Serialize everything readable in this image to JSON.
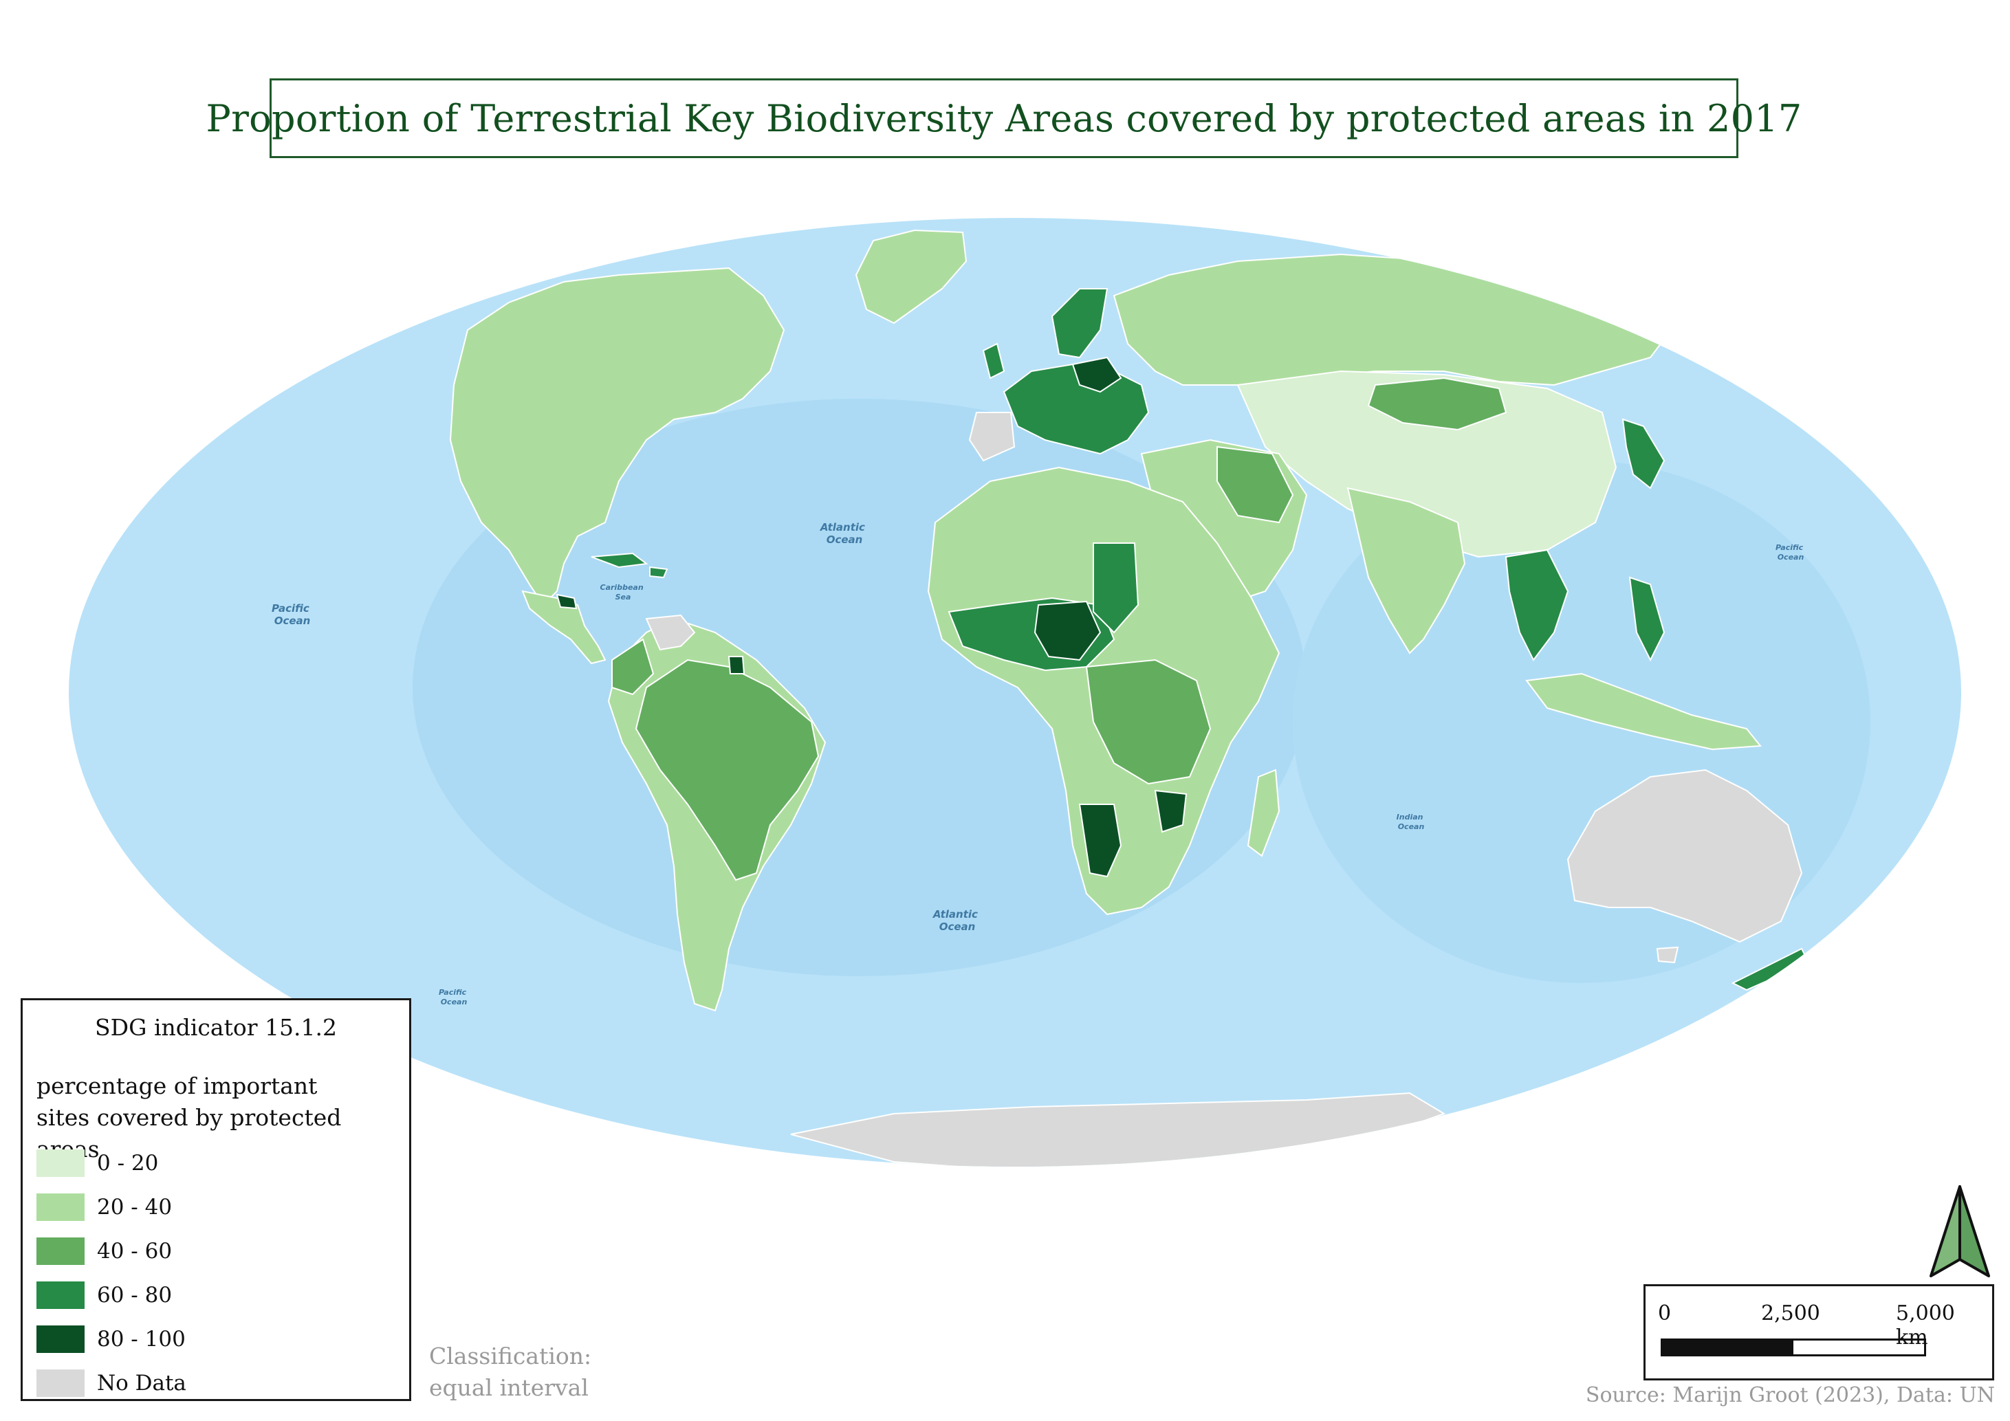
{
  "title": "Proportion of Terrestrial Key Biodiversity Areas covered by protected areas in 2017",
  "ocean_labels": [
    {
      "id": "atlantic-north",
      "lines": [
        "Atlantic",
        "Ocean"
      ]
    },
    {
      "id": "pacific-east",
      "lines": [
        "Pacific",
        "Ocean"
      ]
    },
    {
      "id": "caribbean",
      "lines": [
        "Caribbean",
        "Sea"
      ]
    },
    {
      "id": "atlantic-south",
      "lines": [
        "Atlantic",
        "Ocean"
      ]
    },
    {
      "id": "indian",
      "lines": [
        "Indian",
        "Ocean"
      ]
    },
    {
      "id": "pacific-west",
      "lines": [
        "Pacific",
        "Ocean"
      ]
    },
    {
      "id": "pacific-south",
      "lines": [
        "Pacific",
        "Ocean"
      ]
    }
  ],
  "legend": {
    "title": "SDG indicator 15.1.2",
    "subtitle_lines": [
      "percentage of important",
      "sites covered by protected areas"
    ],
    "classes": [
      {
        "label": "0 - 20",
        "color": "#d9f0d3"
      },
      {
        "label": "20 - 40",
        "color": "#addd9e"
      },
      {
        "label": "40 - 60",
        "color": "#63ad5f"
      },
      {
        "label": "60 - 80",
        "color": "#268b47"
      },
      {
        "label": "80 - 100",
        "color": "#0b5025"
      },
      {
        "label": "No Data",
        "color": "#d9d9d9"
      }
    ]
  },
  "classification": [
    "Classification:",
    "equal interval"
  ],
  "scale": {
    "labels": [
      "0",
      "2,500",
      "5,000 km"
    ]
  },
  "source": "Source: Marijn Groot (2023), Data: UN",
  "colors": {
    "ocean": "#b9e2f8",
    "ocean_deep": "#a9d8f3",
    "title": "#12501f",
    "north_arrow": "#5fa05f"
  }
}
